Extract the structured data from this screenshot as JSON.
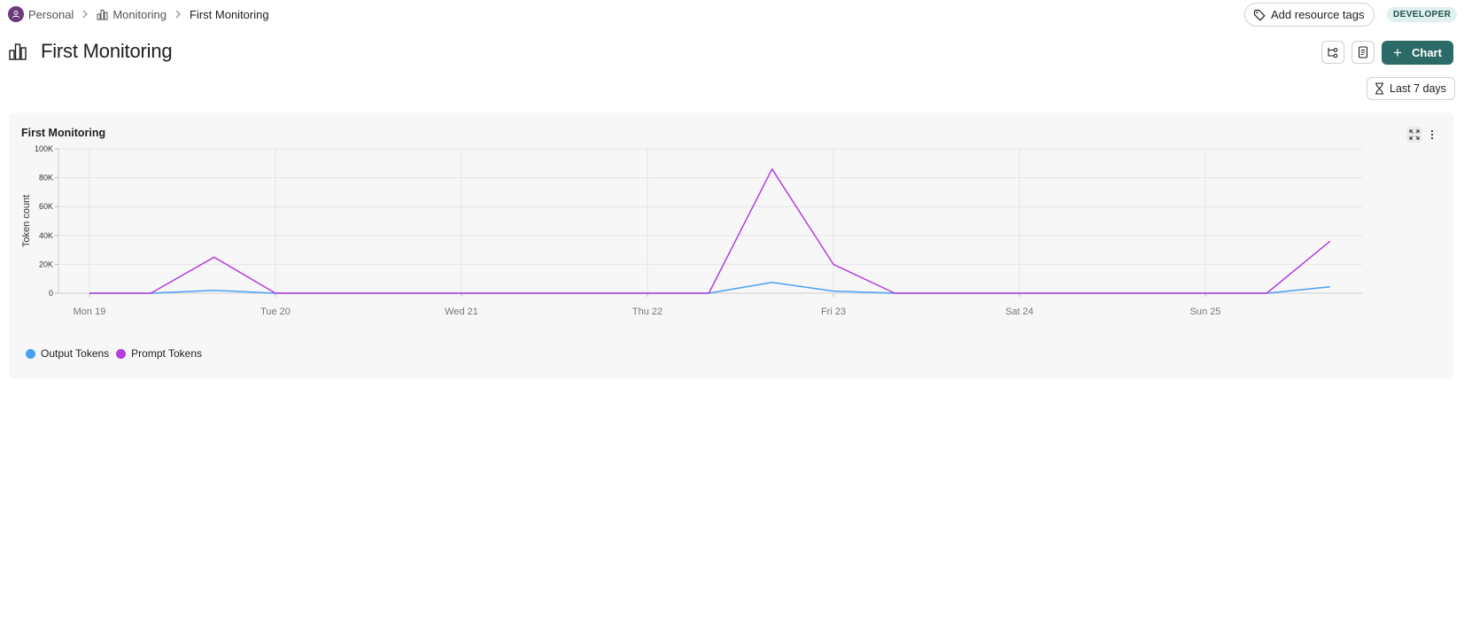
{
  "breadcrumb": {
    "items": [
      {
        "label": "Personal",
        "icon": "user-avatar-icon"
      },
      {
        "label": "Monitoring",
        "icon": "bar-chart-icon"
      },
      {
        "label": "First Monitoring"
      }
    ]
  },
  "header": {
    "tags_label": "Add resource tags",
    "role_badge": "DEVELOPER",
    "title": "First Monitoring",
    "add_chart_label": "Chart",
    "time_range_label": "Last 7 days"
  },
  "colors": {
    "accent": "#2b6a66",
    "output_tokens": "#4a9ff5",
    "prompt_tokens": "#b23fdd"
  },
  "card": {
    "title": "First Monitoring"
  },
  "chart_data": {
    "type": "line",
    "title": "First Monitoring",
    "xlabel": "",
    "ylabel": "Token count",
    "ylim": [
      0,
      100000
    ],
    "yticks": [
      "0",
      "20K",
      "40K",
      "60K",
      "80K",
      "100K"
    ],
    "ytick_values": [
      0,
      20000,
      40000,
      60000,
      80000,
      100000
    ],
    "xticks": [
      "Mon 19",
      "Tue 20",
      "Wed 21",
      "Thu 22",
      "Fri 23",
      "Sat 24",
      "Sun 25"
    ],
    "x_day_range": [
      0,
      6.86
    ],
    "x": [
      0,
      0.33,
      0.67,
      1.0,
      3.0,
      3.33,
      3.67,
      4.0,
      4.33,
      6.0,
      6.33,
      6.67
    ],
    "series": [
      {
        "name": "Output Tokens",
        "values": [
          0,
          0,
          2000,
          0,
          0,
          0,
          7500,
          1500,
          0,
          0,
          0,
          4500
        ]
      },
      {
        "name": "Prompt Tokens",
        "values": [
          0,
          0,
          25000,
          0,
          0,
          0,
          86000,
          20000,
          0,
          0,
          0,
          36000
        ]
      }
    ],
    "grid": true,
    "legend": "bottom-left"
  }
}
